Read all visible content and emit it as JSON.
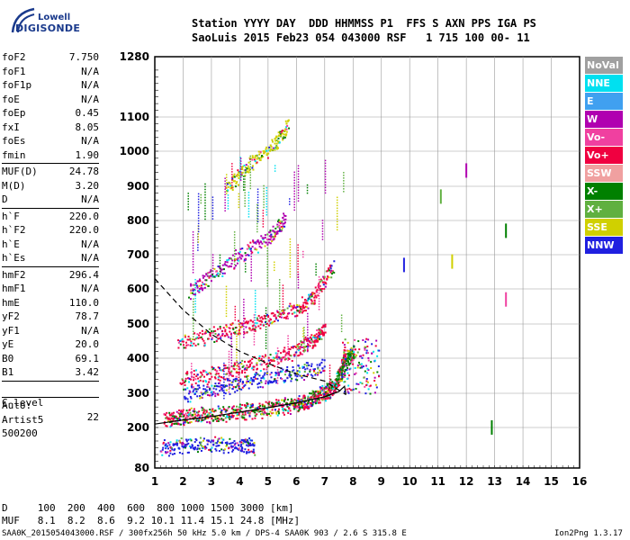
{
  "logo": {
    "line1": "Lowell",
    "line2": "DIGISONDE"
  },
  "header": {
    "line1": "Station YYYY DAY  DDD HHMMSS P1  FFS S AXN PPS IGA PS",
    "line2": "SaoLuis 2015 Feb23 054 043000 RSF   1 715 100 00- 11"
  },
  "params": {
    "group1": [
      {
        "k": "foF2",
        "v": "7.750"
      },
      {
        "k": "foF1",
        "v": "N/A"
      },
      {
        "k": "foF1p",
        "v": "N/A"
      },
      {
        "k": "foE",
        "v": "N/A"
      },
      {
        "k": "foEp",
        "v": "0.45"
      },
      {
        "k": "fxI",
        "v": "8.05"
      },
      {
        "k": "foEs",
        "v": "N/A"
      },
      {
        "k": "fmin",
        "v": "1.90"
      }
    ],
    "group2": [
      {
        "k": "MUF(D)",
        "v": "24.78"
      },
      {
        "k": "M(D)",
        "v": "3.20"
      },
      {
        "k": "D",
        "v": "N/A"
      }
    ],
    "group3": [
      {
        "k": "h`F",
        "v": "220.0"
      },
      {
        "k": "h`F2",
        "v": "220.0"
      },
      {
        "k": "h`E",
        "v": "N/A"
      },
      {
        "k": "h`Es",
        "v": "N/A"
      }
    ],
    "group4": [
      {
        "k": "hmF2",
        "v": "296.4"
      },
      {
        "k": "hmF1",
        "v": "N/A"
      },
      {
        "k": "hmE",
        "v": "110.0"
      },
      {
        "k": "yF2",
        "v": "78.7"
      },
      {
        "k": "yF1",
        "v": "N/A"
      },
      {
        "k": "yE",
        "v": "20.0"
      },
      {
        "k": "B0",
        "v": "69.1"
      },
      {
        "k": "B1",
        "v": "3.42"
      }
    ],
    "clevel": {
      "k": "C-level",
      "v": "22"
    },
    "auto": [
      "Auto:",
      "Artist5",
      "500200"
    ]
  },
  "legend": [
    {
      "label": "NoVal",
      "color": "#a0a0a0"
    },
    {
      "label": "NNE",
      "color": "#00e0f0"
    },
    {
      "label": "E",
      "color": "#40a0f0"
    },
    {
      "label": "W",
      "color": "#b000b0"
    },
    {
      "label": "Vo-",
      "color": "#f040a0"
    },
    {
      "label": "Vo+",
      "color": "#f00040"
    },
    {
      "label": "SSW",
      "color": "#f0a0a0"
    },
    {
      "label": "X-",
      "color": "#008000"
    },
    {
      "label": "X+",
      "color": "#60b040"
    },
    {
      "label": "SSE",
      "color": "#d0d000"
    },
    {
      "label": "NNW",
      "color": "#2020e0"
    }
  ],
  "footer": {
    "d_line": "D     100  200  400  600  800 1000 1500 3000 [km]",
    "muf_line": "MUF   8.1  8.2  8.6  9.2 10.1 11.4 15.1 24.8 [MHz]",
    "file_line": "SAA0K_2015054043000.RSF / 300fx256h 50 kHz 5.0 km / DPS-4 SAA0K 903 / 2.6 S 315.8 E",
    "version": "Ion2Png 1.3.17"
  },
  "chart_data": {
    "type": "scatter",
    "title": "",
    "xlabel": "",
    "ylabel": "",
    "xlim": [
      1,
      16
    ],
    "ylim": [
      80,
      1280
    ],
    "x_ticks": [
      "1",
      "2",
      "3",
      "4",
      "5",
      "6",
      "7",
      "8",
      "9",
      "10",
      "11",
      "12",
      "13",
      "14",
      "15",
      "16"
    ],
    "y_ticks": [
      "80",
      "200",
      "300",
      "400",
      "500",
      "600",
      "700",
      "800",
      "900",
      "1000",
      "1100",
      "1280"
    ],
    "y_tick_values": [
      80,
      200,
      300,
      400,
      500,
      600,
      700,
      800,
      900,
      1000,
      1100,
      1280
    ],
    "grid": true,
    "series": [
      {
        "kind": "trace",
        "color": "#f00040",
        "points": [
          [
            1.3,
            225
          ],
          [
            2,
            232
          ],
          [
            3,
            238
          ],
          [
            4,
            245
          ],
          [
            5,
            255
          ],
          [
            6,
            268
          ],
          [
            6.5,
            280
          ],
          [
            7,
            300
          ],
          [
            7.3,
            320
          ],
          [
            7.55,
            360
          ],
          [
            7.7,
            420
          ]
        ]
      },
      {
        "kind": "trace",
        "color": "#f00040",
        "points": [
          [
            1.9,
            340
          ],
          [
            3,
            355
          ],
          [
            4,
            375
          ],
          [
            5,
            395
          ],
          [
            6,
            425
          ],
          [
            6.6,
            455
          ],
          [
            7,
            485
          ]
        ]
      },
      {
        "kind": "trace",
        "color": "#f00040",
        "points": [
          [
            1.8,
            445
          ],
          [
            3,
            470
          ],
          [
            4,
            490
          ],
          [
            5,
            515
          ],
          [
            6,
            545
          ],
          [
            6.6,
            580
          ],
          [
            7.3,
            670
          ]
        ]
      },
      {
        "kind": "trace",
        "color": "#b000b0",
        "points": [
          [
            2.2,
            590
          ],
          [
            3,
            640
          ],
          [
            4,
            700
          ],
          [
            5,
            750
          ],
          [
            5.6,
            810
          ]
        ]
      },
      {
        "kind": "trace",
        "color": "#d0d000",
        "points": [
          [
            3.5,
            900
          ],
          [
            4.3,
            960
          ],
          [
            5.2,
            1020
          ],
          [
            5.7,
            1080
          ]
        ]
      },
      {
        "kind": "trace",
        "color": "#2020e0",
        "points": [
          [
            1.2,
            140
          ],
          [
            2,
            150
          ],
          [
            3,
            152
          ],
          [
            4,
            150
          ],
          [
            4.5,
            145
          ]
        ]
      },
      {
        "kind": "trace",
        "color": "#2020e0",
        "points": [
          [
            2,
            300
          ],
          [
            3,
            310
          ],
          [
            4,
            330
          ],
          [
            5,
            345
          ],
          [
            6,
            360
          ],
          [
            7,
            380
          ]
        ]
      },
      {
        "kind": "trace",
        "color": "#008000",
        "points": [
          [
            1.5,
            227
          ],
          [
            3,
            240
          ],
          [
            5,
            258
          ],
          [
            6.5,
            285
          ],
          [
            7.4,
            330
          ],
          [
            7.8,
            400
          ],
          [
            8,
            420
          ]
        ]
      }
    ],
    "isolated_points": [
      {
        "x": 9.8,
        "y": 670,
        "color": "#2020e0"
      },
      {
        "x": 12,
        "y": 945,
        "color": "#b000b0"
      },
      {
        "x": 11.1,
        "y": 870,
        "color": "#60b040"
      },
      {
        "x": 13.4,
        "y": 770,
        "color": "#008000"
      },
      {
        "x": 13.4,
        "y": 570,
        "color": "#f040a0"
      },
      {
        "x": 12.9,
        "y": 200,
        "color": "#008000"
      },
      {
        "x": 11.5,
        "y": 680,
        "color": "#d0d000"
      }
    ],
    "profile_solid": [
      [
        1,
        210
      ],
      [
        2,
        222
      ],
      [
        3,
        232
      ],
      [
        4,
        245
      ],
      [
        5,
        258
      ],
      [
        6,
        272
      ],
      [
        7,
        290
      ],
      [
        7.5,
        305
      ],
      [
        7.7,
        320
      ],
      [
        7.75,
        296
      ]
    ],
    "profile_dashed": [
      [
        1,
        630
      ],
      [
        2,
        540
      ],
      [
        3,
        470
      ],
      [
        4,
        420
      ],
      [
        5,
        385
      ],
      [
        6,
        355
      ],
      [
        7,
        335
      ],
      [
        7.75,
        296
      ]
    ]
  }
}
